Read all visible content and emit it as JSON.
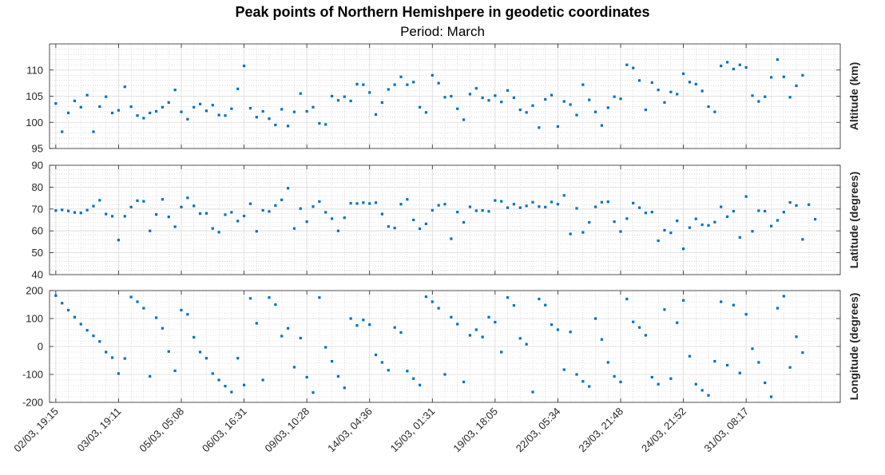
{
  "chart_data": {
    "type": "scatter",
    "title": "Peak points of Northern Hemishpere in geodetic coordinates",
    "subtitle": "Period: March",
    "marker_color": "#0072BD",
    "grid": true,
    "minor_grid": true,
    "x": {
      "ticks": [
        1,
        11,
        21,
        31,
        41,
        51,
        61,
        71,
        81,
        91,
        101,
        111
      ],
      "tick_labels": [
        "02/03, 19:15",
        "03/03, 19:11",
        "05/03, 05:08",
        "06/03, 16:31",
        "09/03, 10:28",
        "14/03, 04:36",
        "15/03, 01:31",
        "19/03, 18:05",
        "22/03, 05:34",
        "23/03, 21:48",
        "24/03, 21:52",
        "31/03, 08:17"
      ],
      "range": [
        0,
        126
      ]
    },
    "panels": [
      {
        "ylabel": "Altitude (km)",
        "ylim": [
          95,
          115
        ],
        "yticks": [
          95,
          100,
          105,
          110
        ],
        "values": [
          103.6,
          98.2,
          101.8,
          104.1,
          102.9,
          105.2,
          98.2,
          103.0,
          104.9,
          101.8,
          102.3,
          106.8,
          103.0,
          101.3,
          100.8,
          101.8,
          102.1,
          102.9,
          103.8,
          106.2,
          102.0,
          100.6,
          102.9,
          103.5,
          102.2,
          103.3,
          101.4,
          101.3,
          102.6,
          106.4,
          110.8,
          102.7,
          101.0,
          102.1,
          100.7,
          99.5,
          102.5,
          99.3,
          102.0,
          105.5,
          102.1,
          102.9,
          99.8,
          99.6,
          105.0,
          104.2,
          104.9,
          104.1,
          107.3,
          107.2,
          105.7,
          101.5,
          103.8,
          106.3,
          107.2,
          108.7,
          107.2,
          107.7,
          102.9,
          101.9,
          109.0,
          107.5,
          104.8,
          105.0,
          102.6,
          100.5,
          105.4,
          106.5,
          104.7,
          104.2,
          105.1,
          103.9,
          106.1,
          104.7,
          102.4,
          101.9,
          103.2,
          99.0,
          104.4,
          105.2,
          99.2,
          104.0,
          103.4,
          101.4,
          107.2,
          104.3,
          102.0,
          99.4,
          102.8,
          104.9,
          104.5,
          111.0,
          110.4,
          108.0,
          102.4,
          107.6,
          106.2,
          103.8,
          105.8,
          105.4,
          109.3,
          107.7,
          107.3,
          106.0,
          103.0,
          102.0,
          110.8,
          111.5,
          110.2,
          111.0,
          110.5,
          105.1,
          104.0,
          104.9,
          108.6,
          112.0,
          108.7,
          104.8,
          107.0,
          109.0
        ]
      },
      {
        "ylabel": "Latitude (degrees)",
        "ylim": [
          40,
          90
        ],
        "yticks": [
          40,
          50,
          60,
          70,
          80,
          90
        ],
        "values": [
          69.3,
          69.6,
          69.1,
          68.4,
          68.2,
          69.5,
          71.3,
          74.0,
          67.7,
          66.7,
          55.8,
          66.7,
          70.9,
          73.8,
          73.5,
          60.0,
          67.5,
          74.4,
          66.4,
          61.9,
          70.9,
          75.1,
          71.4,
          67.9,
          68.0,
          61.1,
          59.4,
          67.4,
          68.5,
          64.5,
          66.8,
          72.4,
          59.8,
          69.4,
          68.9,
          71.6,
          74.2,
          79.5,
          61.1,
          70.2,
          64.2,
          71.1,
          73.4,
          68.5,
          65.6,
          60.0,
          66.0,
          72.6,
          72.5,
          72.9,
          72.5,
          72.9,
          67.7,
          62.0,
          61.3,
          72.2,
          74.4,
          65.0,
          61.0,
          63.2,
          69.4,
          71.7,
          72.2,
          56.4,
          68.6,
          63.9,
          71.0,
          69.2,
          69.3,
          68.9,
          73.9,
          73.5,
          70.6,
          72.2,
          70.6,
          71.4,
          73.1,
          71.1,
          70.9,
          73.2,
          72.2,
          76.2,
          58.6,
          70.3,
          59.3,
          63.9,
          71.0,
          73.1,
          73.3,
          64.2,
          59.7,
          65.6,
          72.7,
          70.6,
          68.2,
          68.6,
          55.5,
          60.3,
          59.1,
          64.6,
          51.8,
          61.5,
          65.5,
          62.8,
          62.5,
          64.0,
          71.0,
          66.5,
          69.0,
          57.0,
          75.7,
          59.8,
          69.2,
          69.0,
          62.2,
          64.8,
          68.6,
          73.0,
          71.6,
          56.1,
          72.0,
          65.3
        ]
      },
      {
        "ylabel": "Longitude (degrees)",
        "ylim": [
          -200,
          200
        ],
        "yticks": [
          -200,
          -100,
          0,
          100,
          200
        ],
        "values": [
          182,
          155,
          130,
          105,
          80,
          58,
          38,
          18,
          -20,
          -40,
          -97,
          -43,
          177,
          160,
          137,
          -107,
          103,
          65,
          -18,
          -87,
          130,
          115,
          33,
          -20,
          -42,
          -97,
          -120,
          -142,
          -163,
          -42,
          -138,
          172,
          83,
          -120,
          175,
          150,
          37,
          65,
          -74,
          30,
          -110,
          -165,
          175,
          -3,
          -53,
          -107,
          -148,
          100,
          75,
          95,
          78,
          -30,
          -57,
          -85,
          68,
          50,
          -88,
          -115,
          -138,
          178,
          160,
          137,
          -100,
          105,
          80,
          -127,
          40,
          60,
          34,
          105,
          87,
          -20,
          175,
          147,
          29,
          8,
          -163,
          170,
          148,
          78,
          60,
          -83,
          52,
          -100,
          -125,
          -143,
          100,
          25,
          -57,
          -107,
          -127,
          170,
          88,
          68,
          40,
          -110,
          -135,
          132,
          -115,
          85,
          165,
          -35,
          -135,
          -157,
          -175,
          -53,
          160,
          -67,
          148,
          -95,
          115,
          -8,
          -57,
          -130,
          -180,
          137,
          180,
          -75,
          35,
          -22
        ]
      }
    ]
  }
}
